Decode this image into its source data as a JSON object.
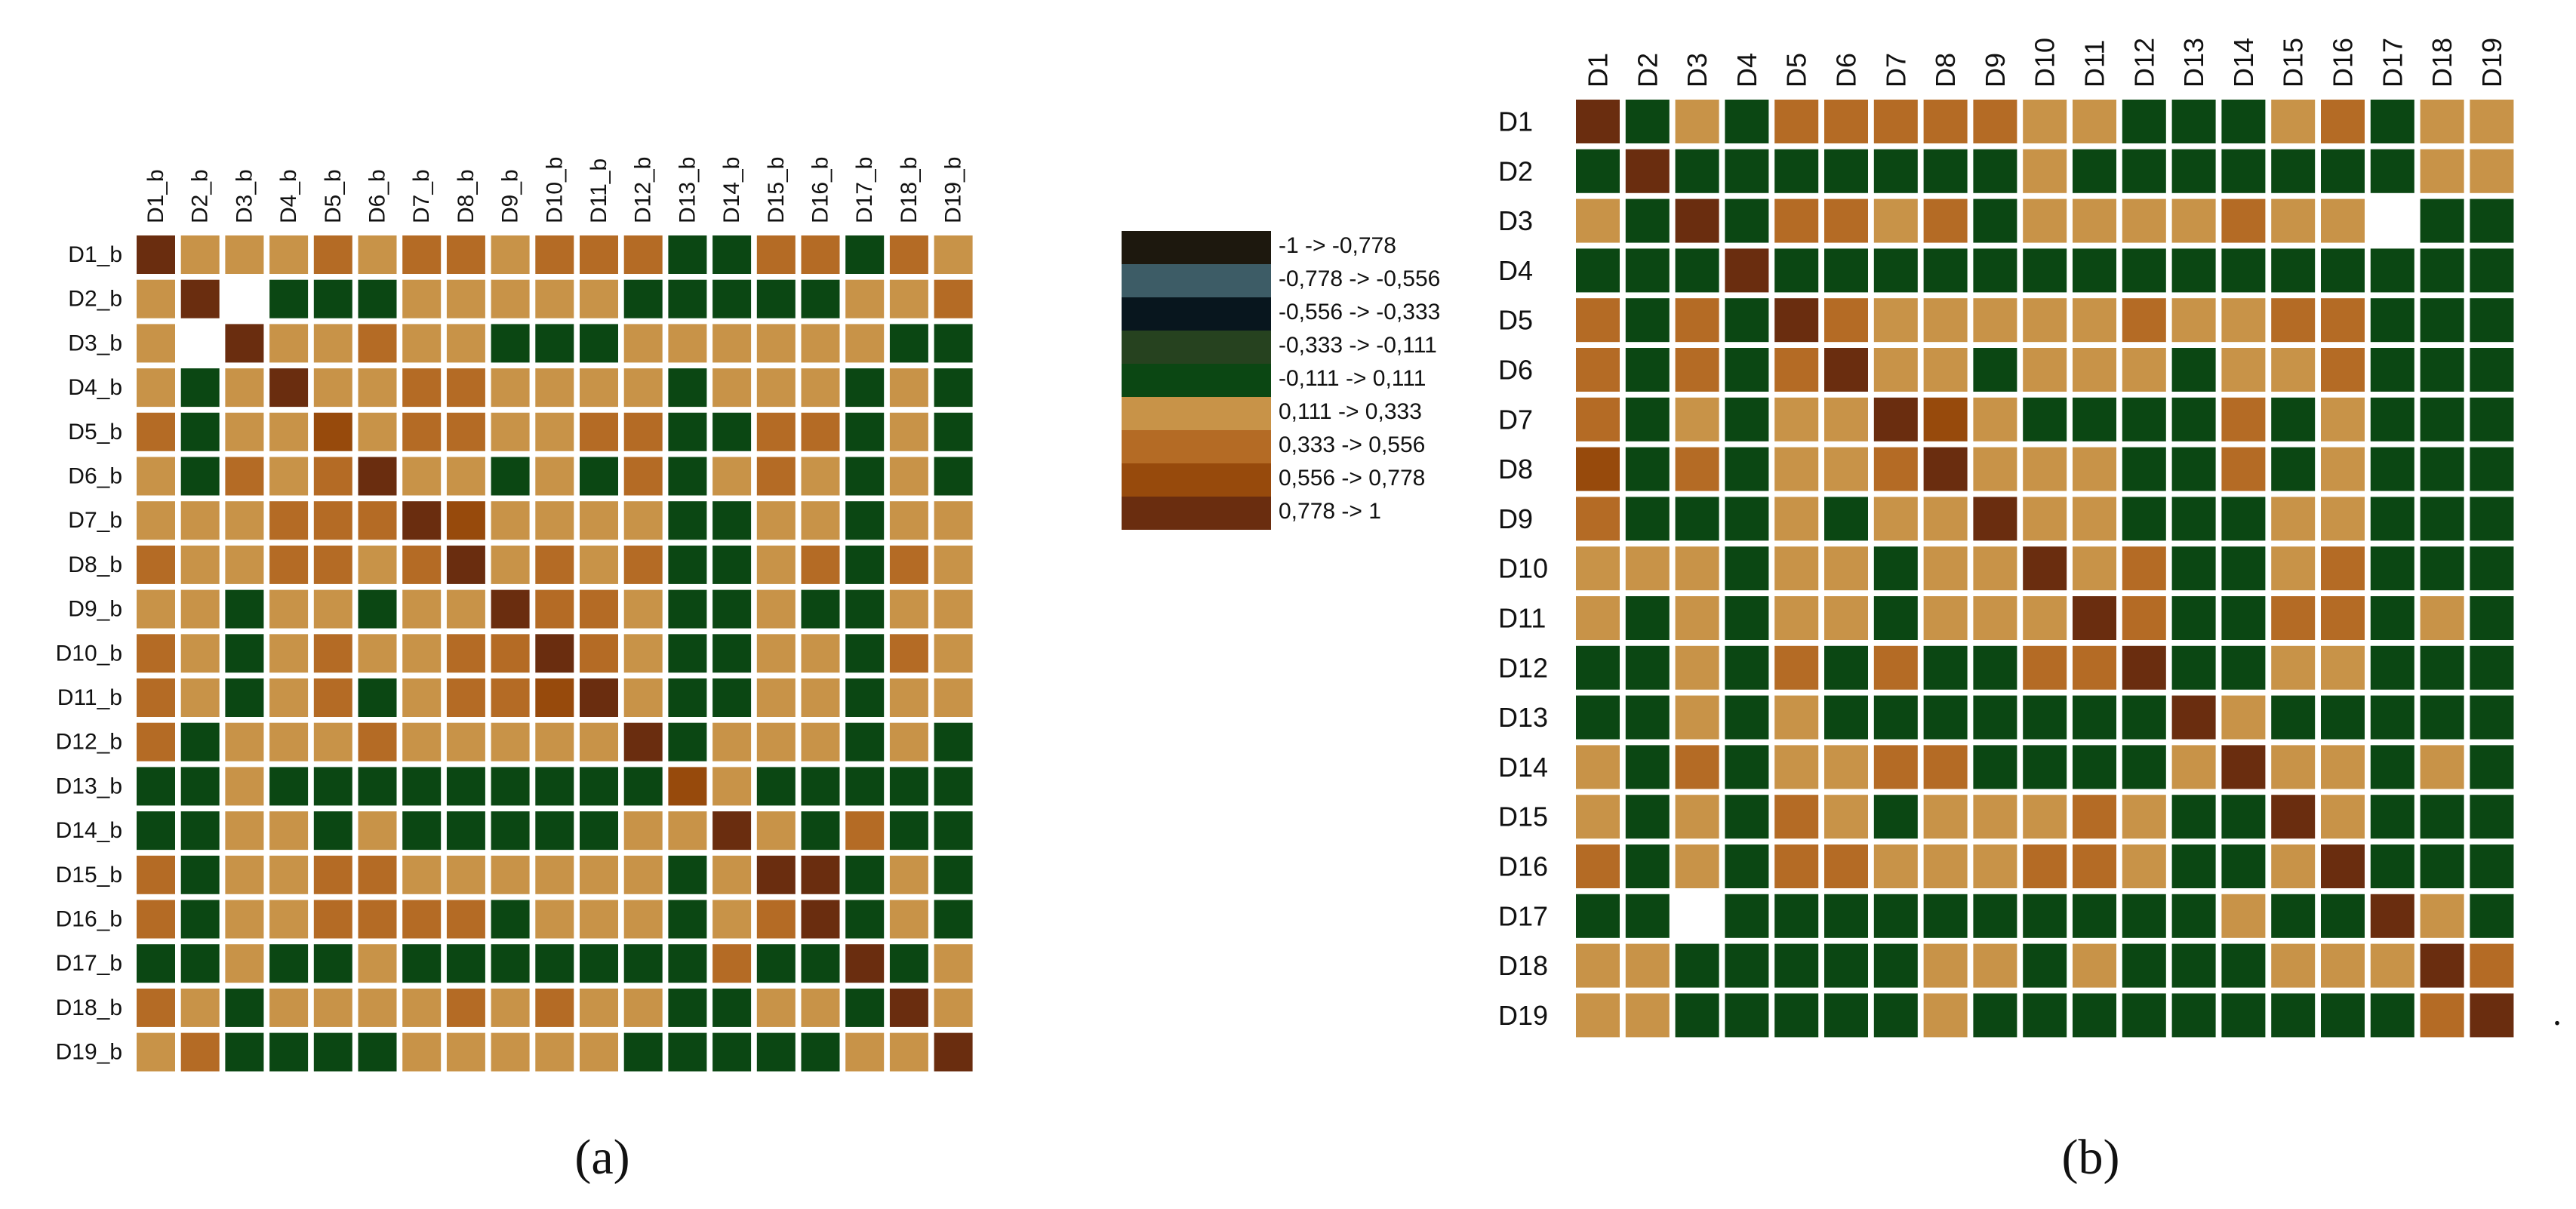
{
  "chart_data": [
    {
      "type": "heatmap",
      "panel_label": "(a)",
      "row_labels": [
        "D1_b",
        "D2_b",
        "D3_b",
        "D4_b",
        "D5_b",
        "D6_b",
        "D7_b",
        "D8_b",
        "D9_b",
        "D10_b",
        "D11_b",
        "D12_b",
        "D13_b",
        "D14_b",
        "D15_b",
        "D16_b",
        "D17_b",
        "D18_b",
        "D19_b"
      ],
      "col_labels": [
        "D1_b",
        "D2_b",
        "D3_b",
        "D4_b",
        "D5_b",
        "D6_b",
        "D7_b",
        "D8_b",
        "D9_b",
        "D10_b",
        "D11_b",
        "D12_b",
        "D13_b",
        "D14_b",
        "D15_b",
        "D16_b",
        "D17_b",
        "D18_b",
        "D19_b"
      ],
      "bins": [
        "8LLLMLMMLMMMGGMMGML",
        "L8.GGGLLLLLGGGGGLLM",
        "L.8LLMLLGGGLLLLLLGG",
        "LGL8LLMMLLLLGLLLGLG",
        "MGLL7LMMLLMMGGMMGLG",
        "LGMLM8LLGLGMGLMLGLG",
        "LLLMMM87LLLLGGLLGLL",
        "MLLMMLM8LMLMGGLMGML",
        "LLGLLGLL8MMLGGLGGLL",
        "MLGLMLLMM8MLGGLLGML",
        "MLGLMGLMM78LGGLLGLL",
        "MGLLLMLLLLL8GLLLGLG",
        "GGLGGGGGGGGG7LGGGGG",
        "GGLLGLGGGGGLL8LGMGG",
        "MGLLMMLLLLLLGL88GLG",
        "MGLLMMMMGLLLGLM8GLG",
        "GGLGGLGGGGGGGMGG8GL",
        "MLGLLLLMLMLLGGLLG8L",
        "LMGGGGLLLLLGGGGGLL8"
      ]
    },
    {
      "type": "heatmap",
      "panel_label": "(b)",
      "row_labels": [
        "D1",
        "D2",
        "D3",
        "D4",
        "D5",
        "D6",
        "D7",
        "D8",
        "D9",
        "D10",
        "D11",
        "D12",
        "D13",
        "D14",
        "D15",
        "D16",
        "D17",
        "D18",
        "D19"
      ],
      "col_labels": [
        "D1",
        "D2",
        "D3",
        "D4",
        "D5",
        "D6",
        "D7",
        "D8",
        "D9",
        "D10",
        "D11",
        "D12",
        "D13",
        "D14",
        "D15",
        "D16",
        "D17",
        "D18",
        "D19"
      ],
      "bins": [
        "8GLGMMMMMLLGGGLMGLL",
        "G8GGGGGGGLGGGGGGGLL",
        "LG8GMMLMGLLLLMLL.GG",
        "GGG8GGGGGGGGGGGGGGG",
        "MGMG8MLLLLLMLLMMGGG",
        "MGMGM8LLGLLLGLLMGGG",
        "MGLGLL87LGGGGMGLGGG",
        "7GMGLLM8LLLGGMGLGGG",
        "MGGGLGLL8LLGGGLLGGG",
        "LLLGLLGLL8LMGGLMGGG",
        "LGLGLLGLLL8MGGMMGLG",
        "GGLGMGMGGMM8GGLLGGG",
        "GGLGLGGGGGGG8LGGGGG",
        "LGMGLLMMGGGGL8LLGLG",
        "LGLGMLGLLLMLGG8LGGG",
        "MGLGMMLLLMMLGGL8GGG",
        "GG.GGGGGGGGGGLGG8LG",
        "LLGGGGGLLGLGGGLLL8M",
        "LLGGGGGLGGGGGGGGGM8"
      ]
    }
  ],
  "legend": [
    {
      "label": "-1 -> -0,778",
      "color": "#1d180e"
    },
    {
      "label": "-0,778 -> -0,556",
      "color": "#3d5c66"
    },
    {
      "label": "-0,556 -> -0,333",
      "color": "#08161e"
    },
    {
      "label": "-0,333 -> -0,111",
      "color": "#26421f"
    },
    {
      "label": "-0,111 -> 0,111",
      "color": "#0b4713"
    },
    {
      "label": "0,111 -> 0,333",
      "color": "#c89348"
    },
    {
      "label": "0,333 -> 0,556",
      "color": "#b46b25"
    },
    {
      "label": "0,556 -> 0,778",
      "color": "#974a0c"
    },
    {
      "label": "0,778 -> 1",
      "color": "#6a2d0f"
    }
  ],
  "colors": {
    "G": "#0b4713",
    "L": "#c89348",
    "M": "#b46b25",
    "7": "#974a0c",
    "8": "#6a2d0f",
    ".": "#ffffff"
  }
}
